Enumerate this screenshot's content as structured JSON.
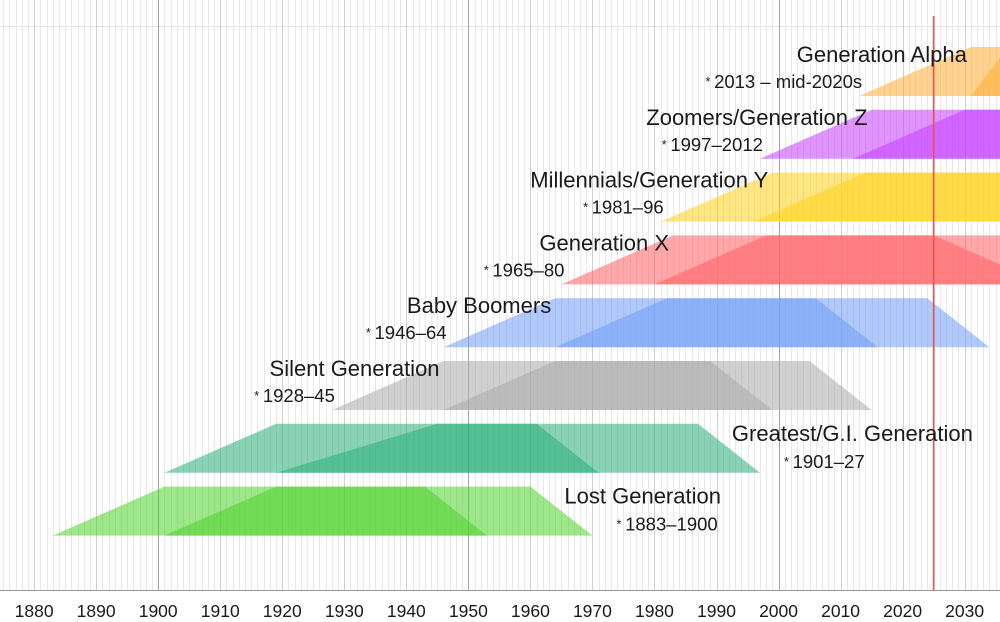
{
  "chart_data": {
    "type": "timeline",
    "title": "",
    "xlabel": "",
    "ylabel": "",
    "xlim": [
      1874.5,
      2035.7
    ],
    "ticks": [
      1880,
      1890,
      1900,
      1910,
      1920,
      1930,
      1940,
      1950,
      1960,
      1970,
      1980,
      1990,
      2000,
      2010,
      2020,
      2030
    ],
    "tick_labels": [
      "1880",
      "1890",
      "1900",
      "1910",
      "1920",
      "1930",
      "1940",
      "1950",
      "1960",
      "1970",
      "1980",
      "1990",
      "2000",
      "2010",
      "2020",
      "2030"
    ],
    "minor_gridline_step_years": 1,
    "major_gridline_step_years": 50,
    "current_year_marker": 2025,
    "marker_color": "#e8554e",
    "birth_symbol": "*",
    "generations": [
      {
        "name": "Generation Alpha",
        "years_label": "2013 – mid-2020s",
        "birth_start": 2013,
        "birth_end": 2025,
        "color": "#ffad33",
        "outer": [
          2013,
          2031,
          2050,
          2050
        ],
        "inner": [
          2031,
          2037,
          2050,
          2050
        ],
        "label_side": "left"
      },
      {
        "name": "Zoomers/Generation Z",
        "years_label": "1997–2012",
        "birth_start": 1997,
        "birth_end": 2012,
        "color": "#c63cff",
        "outer": [
          1997,
          2015,
          2050,
          2050
        ],
        "inner": [
          2012,
          2030,
          2050,
          2050
        ],
        "label_side": "left"
      },
      {
        "name": "Millennials/Generation Y",
        "years_label": "1981–96",
        "birth_start": 1981,
        "birth_end": 1996,
        "color": "#ffd11a",
        "outer": [
          1981,
          1999,
          2050,
          2050
        ],
        "inner": [
          1996,
          2014,
          2050,
          2050
        ],
        "label_side": "left"
      },
      {
        "name": "Generation X",
        "years_label": "1965–80",
        "birth_start": 1965,
        "birth_end": 1980,
        "color": "#ff5f63",
        "outer": [
          1965,
          1983,
          2050,
          2050
        ],
        "inner": [
          1980,
          1998,
          2025,
          2043
        ],
        "label_side": "left"
      },
      {
        "name": "Baby Boomers",
        "years_label": "1946–64",
        "birth_start": 1946,
        "birth_end": 1964,
        "color": "#6f9cf5",
        "outer": [
          1946,
          1964,
          2024,
          2034
        ],
        "inner": [
          1964,
          1982,
          2006,
          2016
        ],
        "label_side": "left"
      },
      {
        "name": "Silent Generation",
        "years_label": "1928–45",
        "birth_start": 1928,
        "birth_end": 1945,
        "color": "#a9a9a9",
        "outer": [
          1928,
          1946,
          2005,
          2015
        ],
        "inner": [
          1946,
          1964,
          1989,
          1999
        ],
        "label_side": "left"
      },
      {
        "name": "Greatest/G.I. Generation",
        "years_label": "1901–27",
        "birth_start": 1901,
        "birth_end": 1927,
        "color": "#28ad7a",
        "outer": [
          1901,
          1919,
          1987,
          1997
        ],
        "inner": [
          1919,
          1945,
          1961,
          1971
        ],
        "label_side": "right"
      },
      {
        "name": "Lost Generation",
        "years_label": "1883–1900",
        "birth_start": 1883,
        "birth_end": 1900,
        "color": "#4fd12a",
        "outer": [
          1883,
          1901,
          1960,
          1970
        ],
        "inner": [
          1901,
          1919,
          1943,
          1953
        ],
        "label_side": "right"
      }
    ]
  }
}
